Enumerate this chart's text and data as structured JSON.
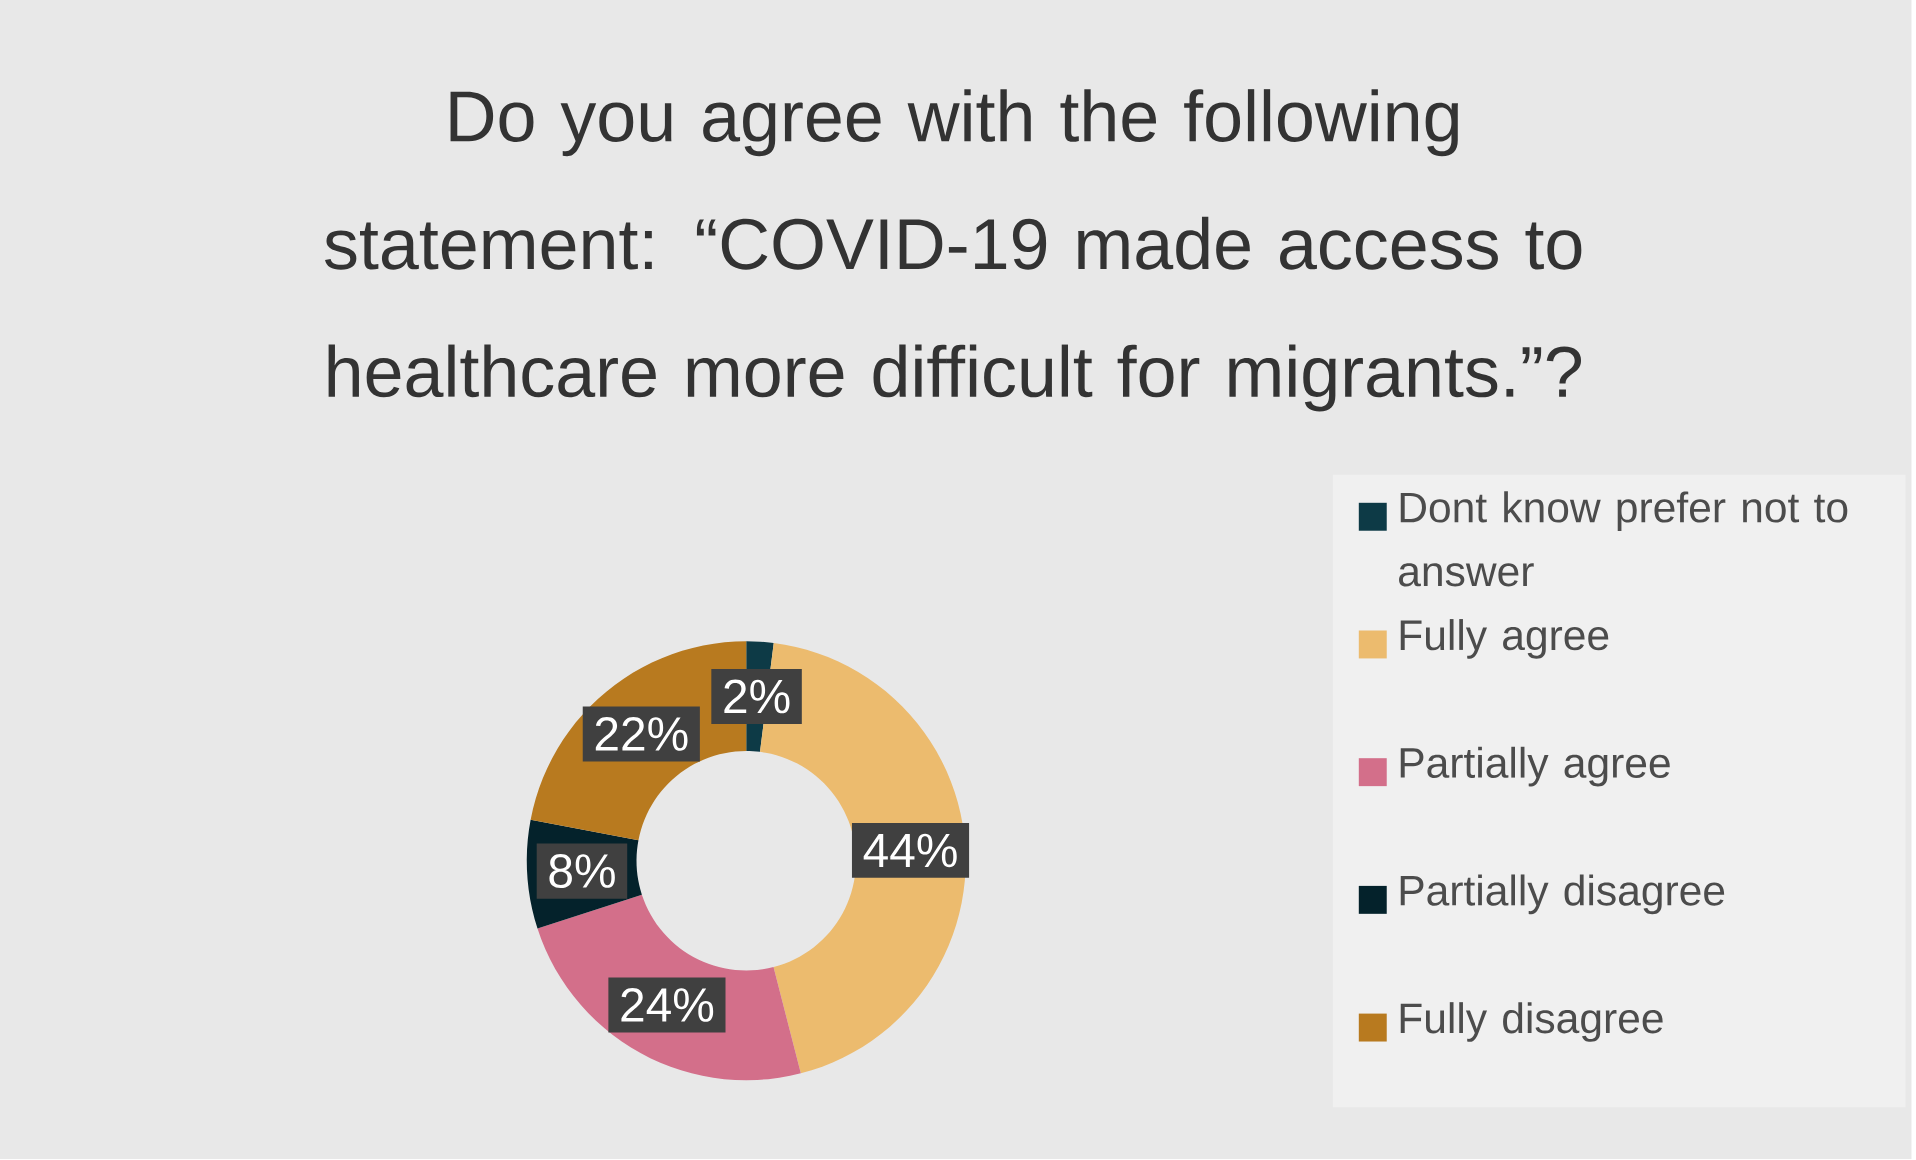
{
  "chart_data": {
    "type": "donut",
    "title": "Do you agree with the following statement: “COVID-19 made access to healthcare more difficult for migrants.”?",
    "categories": [
      "Dont know prefer not to answer",
      "Fully agree",
      "Partially agree",
      "Partially disagree",
      "Fully disagree"
    ],
    "values": [
      2,
      44,
      24,
      8,
      22
    ],
    "value_labels": [
      "2%",
      "44%",
      "24%",
      "8%",
      "22%"
    ],
    "colors": [
      "#0d3a46",
      "#ecbb6e",
      "#d36f8a",
      "#04222b",
      "#b87a1f"
    ],
    "legend": "right"
  }
}
